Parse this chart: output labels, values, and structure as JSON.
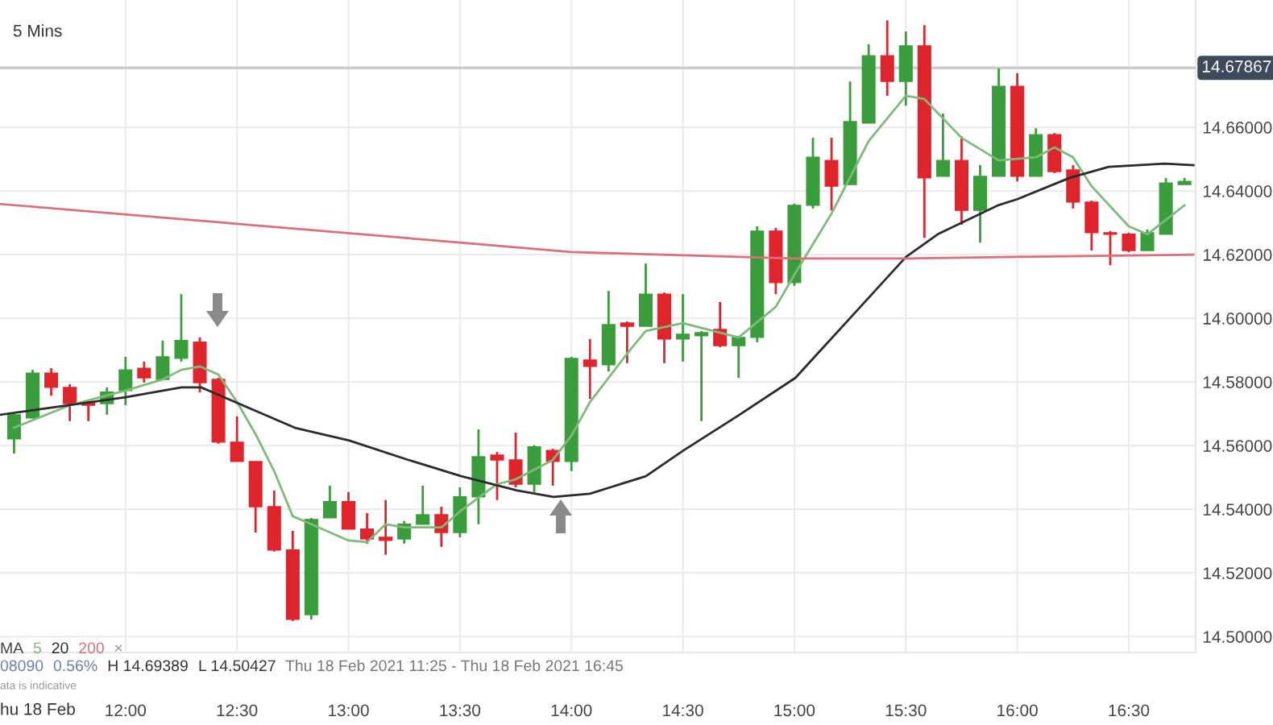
{
  "chart_data": {
    "type": "candlestick",
    "x": [
      11.5,
      11.5833,
      11.6667,
      11.75,
      11.8333,
      11.9167,
      12.0,
      12.0833,
      12.1667,
      12.25,
      12.3333,
      12.4167,
      12.5,
      12.5833,
      12.6667,
      12.75,
      12.8333,
      12.9167,
      13.0,
      13.0833,
      13.1667,
      13.25,
      13.3333,
      13.4167,
      13.5,
      13.5833,
      13.6667,
      13.75,
      13.8333,
      13.9167,
      14.0,
      14.0833,
      14.1667,
      14.25,
      14.3333,
      14.4167,
      14.5,
      14.5833,
      14.6667,
      14.75,
      14.8333,
      14.9167,
      15.0,
      15.0833,
      15.1667,
      15.25,
      15.3333,
      15.4167,
      15.5,
      15.5833,
      15.6667,
      15.75,
      15.8333,
      15.9167,
      16.0,
      16.0833,
      16.1667,
      16.25,
      16.3333,
      16.4167,
      16.5,
      16.5833,
      16.6667,
      16.75
    ],
    "ohlc": [
      [
        14.5621,
        14.57,
        14.5575,
        14.5697
      ],
      [
        14.5687,
        14.5838,
        14.5685,
        14.5828
      ],
      [
        14.5828,
        14.5843,
        14.5757,
        14.5783
      ],
      [
        14.5783,
        14.5793,
        14.5677,
        14.5732
      ],
      [
        14.5737,
        14.5737,
        14.5677,
        14.5727
      ],
      [
        14.5732,
        14.5783,
        14.5697,
        14.5768
      ],
      [
        14.5773,
        14.5879,
        14.5727,
        14.5838
      ],
      [
        14.5843,
        14.5864,
        14.5798,
        14.5813
      ],
      [
        14.5808,
        14.593,
        14.5808,
        14.5879
      ],
      [
        14.5874,
        14.6076,
        14.5864,
        14.593
      ],
      [
        14.5925,
        14.594,
        14.5767,
        14.5798
      ],
      [
        14.5808,
        14.5813,
        14.5606,
        14.5611
      ],
      [
        14.5611,
        14.5692,
        14.555,
        14.555
      ],
      [
        14.555,
        14.555,
        14.5327,
        14.5408
      ],
      [
        14.5408,
        14.5459,
        14.5267,
        14.5272
      ],
      [
        14.5272,
        14.5332,
        14.5049,
        14.5054
      ],
      [
        14.5069,
        14.5373,
        14.5054,
        14.5368
      ],
      [
        14.5373,
        14.5474,
        14.5373,
        14.5424
      ],
      [
        14.5424,
        14.5454,
        14.5338,
        14.5338
      ],
      [
        14.5338,
        14.5388,
        14.5292,
        14.5307
      ],
      [
        14.5312,
        14.5429,
        14.5257,
        14.5302
      ],
      [
        14.5307,
        14.5363,
        14.5292,
        14.5353
      ],
      [
        14.5353,
        14.5474,
        14.5353,
        14.5383
      ],
      [
        14.5383,
        14.5408,
        14.5282,
        14.5327
      ],
      [
        14.5327,
        14.5469,
        14.5312,
        14.5439
      ],
      [
        14.5439,
        14.5651,
        14.5353,
        14.5565
      ],
      [
        14.557,
        14.558,
        14.5429,
        14.5555
      ],
      [
        14.5555,
        14.5641,
        14.5469,
        14.5479
      ],
      [
        14.5479,
        14.5601,
        14.5454,
        14.5596
      ],
      [
        14.5585,
        14.559,
        14.5474,
        14.555
      ],
      [
        14.555,
        14.5879,
        14.552,
        14.5874
      ],
      [
        14.5869,
        14.5935,
        14.5747,
        14.5849
      ],
      [
        14.5854,
        14.6086,
        14.5833,
        14.598
      ],
      [
        14.5985,
        14.599,
        14.5859,
        14.5975
      ],
      [
        14.5975,
        14.6172,
        14.5975,
        14.6076
      ],
      [
        14.6076,
        14.6081,
        14.5859,
        14.5935
      ],
      [
        14.5935,
        14.6076,
        14.5864,
        14.595
      ],
      [
        14.5945,
        14.596,
        14.5677,
        14.5955
      ],
      [
        14.5965,
        14.6051,
        14.5909,
        14.5914
      ],
      [
        14.5914,
        14.5945,
        14.5813,
        14.594
      ],
      [
        14.594,
        14.6289,
        14.5925,
        14.6274
      ],
      [
        14.6274,
        14.6284,
        14.6076,
        14.6112
      ],
      [
        14.6112,
        14.636,
        14.6102,
        14.6355
      ],
      [
        14.6355,
        14.6567,
        14.6345,
        14.6506
      ],
      [
        14.6496,
        14.6567,
        14.6339,
        14.6415
      ],
      [
        14.642,
        14.6744,
        14.642,
        14.6618
      ],
      [
        14.6613,
        14.6861,
        14.6613,
        14.6825
      ],
      [
        14.6825,
        14.6936,
        14.6699,
        14.6744
      ],
      [
        14.6744,
        14.6901,
        14.6668,
        14.6856
      ],
      [
        14.6856,
        14.6921,
        14.6253,
        14.6441
      ],
      [
        14.6446,
        14.6643,
        14.6446,
        14.6496
      ],
      [
        14.6496,
        14.6572,
        14.6294,
        14.6339
      ],
      [
        14.6339,
        14.6481,
        14.6238,
        14.6446
      ],
      [
        14.6446,
        14.6785,
        14.6446,
        14.6729
      ],
      [
        14.6729,
        14.677,
        14.643,
        14.6446
      ],
      [
        14.6446,
        14.6597,
        14.6446,
        14.6577
      ],
      [
        14.6577,
        14.6582,
        14.6456,
        14.6461
      ],
      [
        14.6466,
        14.6481,
        14.6345,
        14.6365
      ],
      [
        14.6365,
        14.637,
        14.6213,
        14.6269
      ],
      [
        14.6269,
        14.6274,
        14.6167,
        14.6264
      ],
      [
        14.6264,
        14.6269,
        14.6208,
        14.6213
      ],
      [
        14.6213,
        14.6279,
        14.6213,
        14.6269
      ],
      [
        14.6264,
        14.6441,
        14.6264,
        14.6425
      ],
      [
        14.642,
        14.6441,
        14.642,
        14.643
      ]
    ],
    "series": [
      {
        "name": "5",
        "type": "line",
        "color": "#7dbb7a",
        "x": [
          11.5,
          11.75,
          12.0,
          12.1667,
          12.25,
          12.3333,
          12.4167,
          12.5,
          12.5833,
          12.6667,
          12.75,
          12.8333,
          13.0,
          13.0833,
          13.1667,
          13.25,
          13.4167,
          13.5,
          13.6667,
          13.75,
          13.9167,
          14.0,
          14.0833,
          14.25,
          14.3333,
          14.5,
          14.75,
          14.9167,
          15.0,
          15.1667,
          15.3333,
          15.5,
          15.5833,
          15.75,
          15.9167,
          16.0833,
          16.1667,
          16.25,
          16.3333,
          16.5,
          16.5833,
          16.75
        ],
        "values": [
          14.5656,
          14.5727,
          14.5773,
          14.5808,
          14.5838,
          14.5849,
          14.5823,
          14.5737,
          14.5636,
          14.552,
          14.5378,
          14.5353,
          14.5302,
          14.5297,
          14.5353,
          14.5343,
          14.5343,
          14.5393,
          14.5479,
          14.5494,
          14.5555,
          14.5631,
          14.5737,
          14.5889,
          14.596,
          14.5985,
          14.594,
          14.6036,
          14.6137,
          14.6329,
          14.6557,
          14.6699,
          14.6689,
          14.6567,
          14.6496,
          14.6506,
          14.6537,
          14.6506,
          14.6415,
          14.6289,
          14.6264,
          14.6355
        ]
      },
      {
        "name": "20",
        "type": "line",
        "color": "#2b2b2b",
        "x": [
          11.44,
          12.0,
          12.251,
          12.339,
          12.76,
          13.004,
          13.269,
          13.506,
          13.757,
          13.92,
          14.083,
          14.334,
          14.503,
          14.754,
          15.005,
          15.236,
          15.501,
          15.643,
          15.914,
          16.003,
          16.234,
          16.41,
          16.661,
          16.79
        ],
        "values": [
          14.5697,
          14.5752,
          14.5783,
          14.5783,
          14.5656,
          14.5616,
          14.5555,
          14.5504,
          14.5459,
          14.5439,
          14.5449,
          14.5504,
          14.5585,
          14.5697,
          14.5813,
          14.599,
          14.6193,
          14.6264,
          14.6355,
          14.6375,
          14.6441,
          14.6476,
          14.6486,
          14.6481
        ]
      },
      {
        "name": "200",
        "type": "line",
        "color": "#d9707a",
        "x": [
          11.44,
          12.5,
          13.5,
          14.0,
          14.5,
          15.0,
          15.5,
          16.0,
          16.79
        ],
        "values": [
          14.6359,
          14.6297,
          14.6238,
          14.6208,
          14.6198,
          14.6188,
          14.6188,
          14.6193,
          14.62
        ]
      }
    ],
    "xlim": [
      11.437,
      16.8
    ],
    "xticks": [
      {
        "value": 12,
        "label": "12:00"
      },
      {
        "value": 12.5,
        "label": "12:30"
      },
      {
        "value": 13,
        "label": "13:00"
      },
      {
        "value": 13.5,
        "label": "13:30"
      },
      {
        "value": 14,
        "label": "14:00"
      },
      {
        "value": 14.5,
        "label": "14:30"
      },
      {
        "value": 15,
        "label": "15:00"
      },
      {
        "value": 15.5,
        "label": "15:30"
      },
      {
        "value": 16,
        "label": "16:00"
      },
      {
        "value": 16.5,
        "label": "16:30"
      }
    ],
    "ylim": [
      14.495,
      14.7
    ],
    "yticks": [
      {
        "value": 14.5,
        "label": "14.50000"
      },
      {
        "value": 14.52,
        "label": "14.52000"
      },
      {
        "value": 14.54,
        "label": "14.54000"
      },
      {
        "value": 14.56,
        "label": "14.56000"
      },
      {
        "value": 14.58,
        "label": "14.58000"
      },
      {
        "value": 14.6,
        "label": "14.60000"
      },
      {
        "value": 14.62,
        "label": "14.62000"
      },
      {
        "value": 14.64,
        "label": "14.64000"
      },
      {
        "value": 14.66,
        "label": "14.66000"
      }
    ],
    "ref_lines": [
      {
        "axis": "y",
        "value": 14.67867,
        "label": "14.67867",
        "color": "#cccccc"
      }
    ],
    "grid": true,
    "legend": "bottom left",
    "annotations": [
      "5 Mins",
      "MA",
      "×",
      "08090",
      "0.56%",
      "H 14.69389",
      "L 14.50427",
      "Thu 18 Feb 2021 11:25 - Thu 18 Feb 2021 16:45",
      "ata is indicative",
      "hu 18 Feb"
    ]
  }
}
